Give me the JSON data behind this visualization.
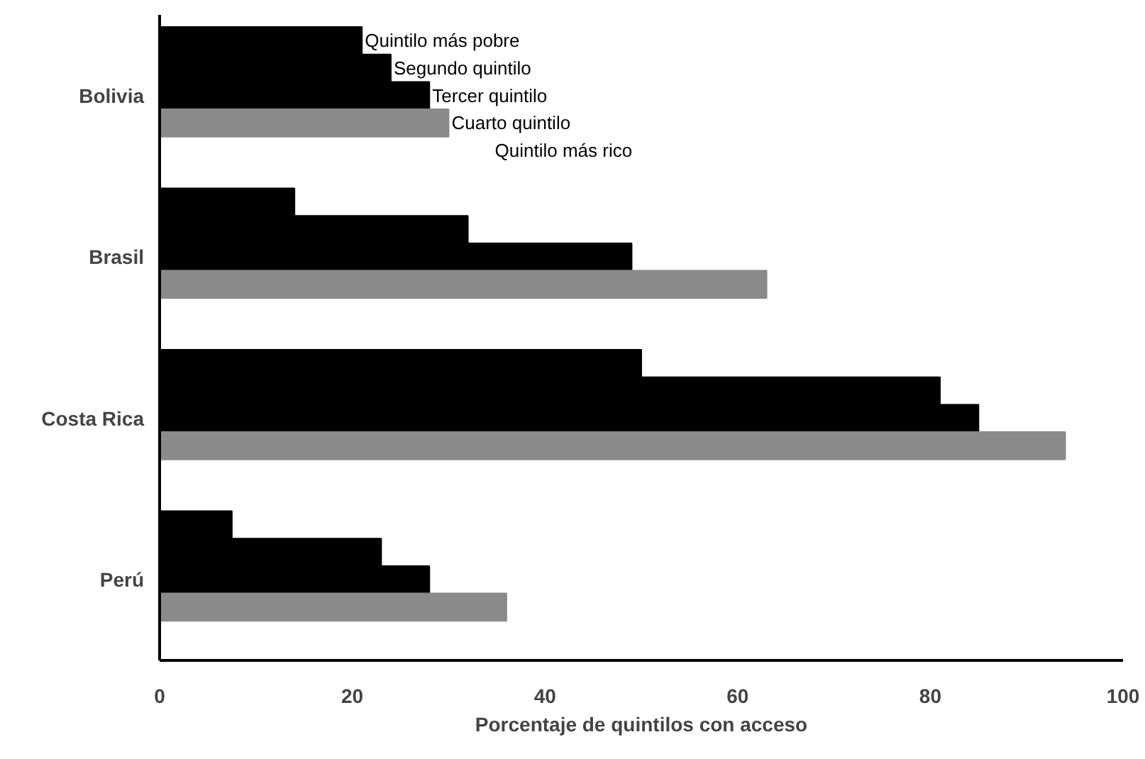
{
  "chart_data": {
    "type": "bar",
    "orientation": "horizontal",
    "xlabel": "Porcentaje de quintilos con acceso",
    "categories": [
      "Bolivia",
      "Brasil",
      "Costa Rica",
      "Perú"
    ],
    "series": [
      {
        "name": "Quintilo más pobre",
        "color": "#000000",
        "values": [
          21,
          14,
          50,
          7.5
        ]
      },
      {
        "name": "Segundo quintilo",
        "color": "#000000",
        "values": [
          24,
          32,
          81,
          23
        ]
      },
      {
        "name": "Tercer quintilo",
        "color": "#000000",
        "values": [
          28,
          49,
          85,
          28
        ]
      },
      {
        "name": "Cuarto quintilo",
        "color": "#8a8a8a",
        "values": [
          30,
          63,
          94,
          36
        ]
      },
      {
        "name": "Quintilo más rico",
        "values": [
          null,
          null,
          null,
          null
        ]
      }
    ],
    "xlim": [
      0,
      100
    ],
    "xticks": [
      0,
      20,
      40,
      60,
      80,
      100
    ],
    "grid": false,
    "legend": "top left"
  }
}
